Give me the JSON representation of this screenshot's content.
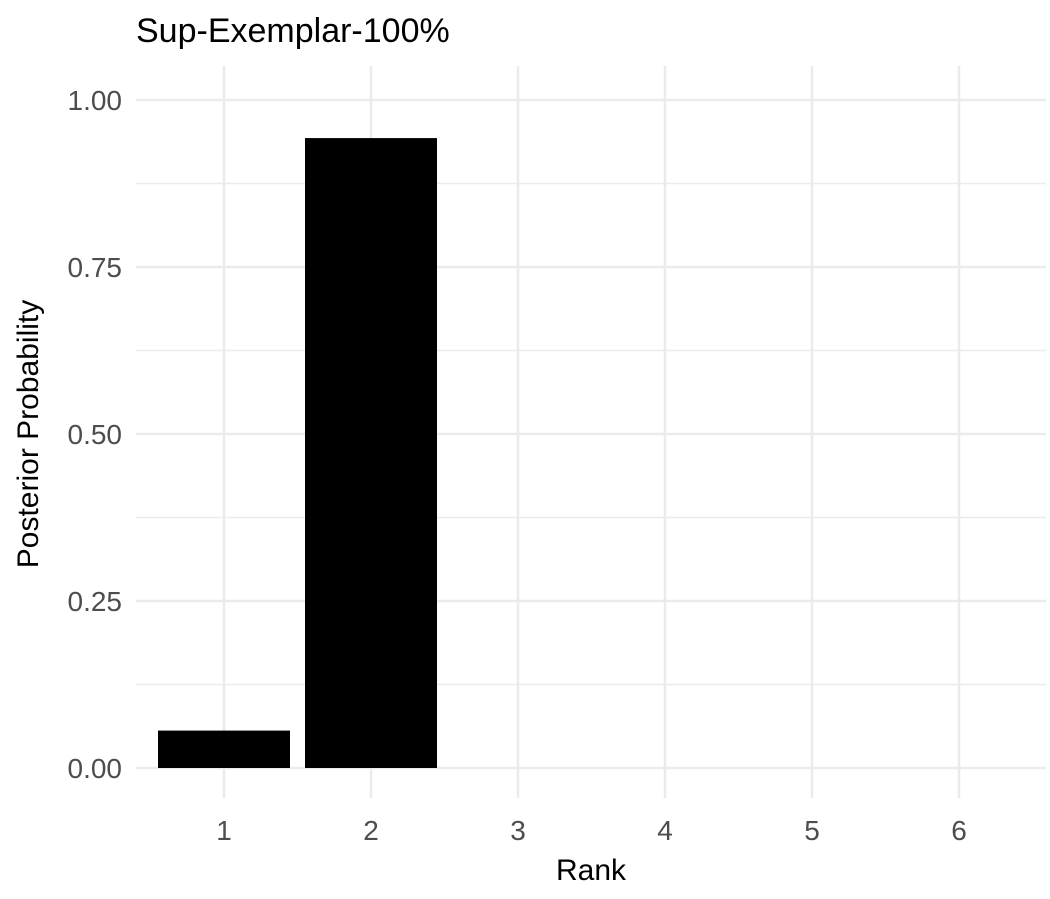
{
  "chart_data": {
    "type": "bar",
    "title": "Sup-Exemplar-100%",
    "xlabel": "Rank",
    "ylabel": "Posterior Probability",
    "categories": [
      "1",
      "2",
      "3",
      "4",
      "5",
      "6"
    ],
    "values": [
      0.056,
      0.943,
      0,
      0,
      0,
      0
    ],
    "ylim": [
      0,
      1
    ],
    "yticks": [
      "0.00",
      "0.25",
      "0.50",
      "0.75",
      "1.00"
    ],
    "ytick_values": [
      0,
      0.25,
      0.5,
      0.75,
      1.0
    ],
    "grid": true,
    "legend": "none",
    "bar_color": "#000000",
    "grid_color": "#ebebeb"
  }
}
